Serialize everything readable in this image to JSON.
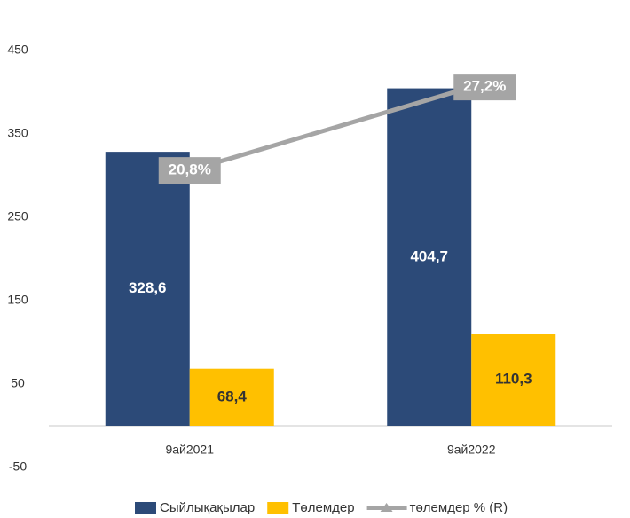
{
  "chart_data": {
    "type": "bar",
    "categories": [
      "9ай2021",
      "9ай2022"
    ],
    "series": [
      {
        "name": "Сыйлықақылар",
        "color": "#2c4a78",
        "values": [
          328.6,
          404.7
        ],
        "value_labels": [
          "328,6",
          "404,7"
        ]
      },
      {
        "name": "Төлемдер",
        "color": "#ffc000",
        "values": [
          68.4,
          110.3
        ],
        "value_labels": [
          "68,4",
          "110,3"
        ]
      },
      {
        "name": "төлемдер % (R)",
        "type": "line",
        "axis": "y2",
        "color": "#a5a5a5",
        "values": [
          20.8,
          27.2
        ],
        "value_labels": [
          "20,8%",
          "27,2%"
        ]
      }
    ],
    "ylim": [
      -50,
      450
    ],
    "yticks": [
      -50,
      50,
      150,
      250,
      350,
      450
    ],
    "y2lim": [
      -2,
      30
    ],
    "legend": "bottom"
  }
}
